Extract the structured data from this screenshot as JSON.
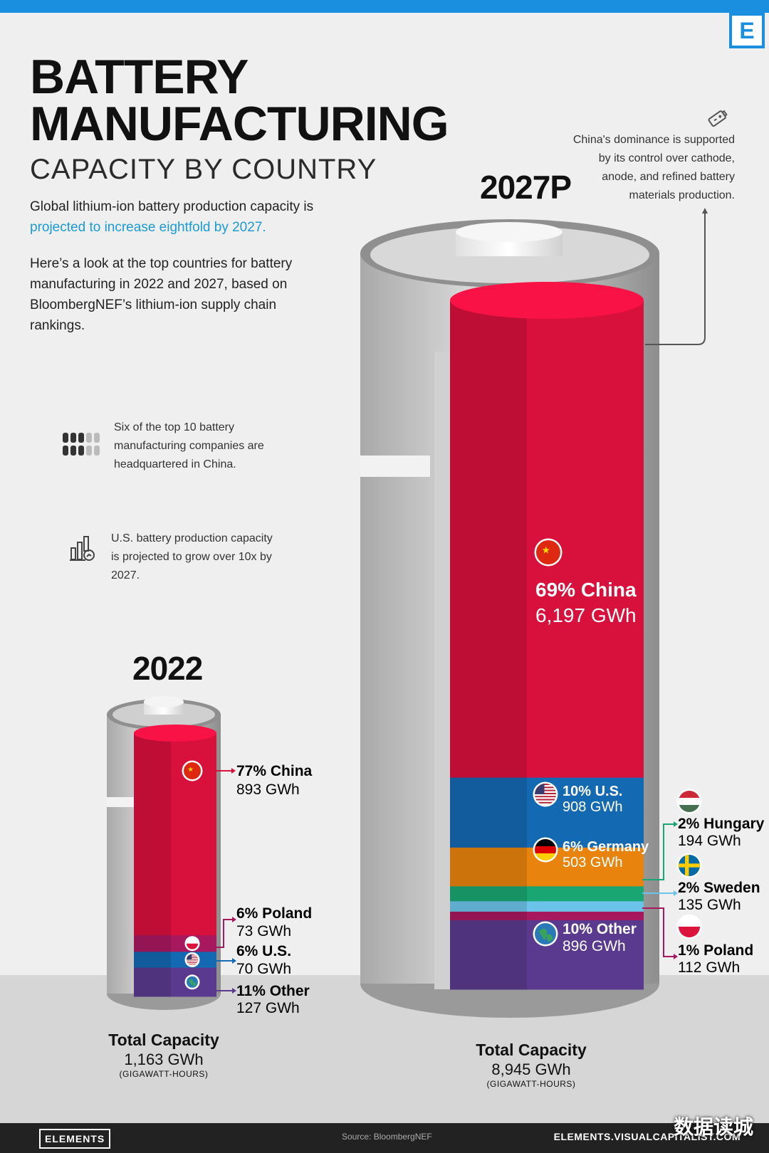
{
  "header": {
    "logo": "E",
    "title_line1": "BATTERY",
    "title_line2": "MANUFACTURING",
    "subtitle": "CAPACITY BY COUNTRY"
  },
  "intro": {
    "p1_start": "Global lithium-ion battery production capacity is ",
    "p1_highlight": "projected to increase eightfold by 2027.",
    "p2": "Here’s a look at the top countries for battery manufacturing in 2022 and 2027, based on BloombergNEF’s lithium-ion supply chain rankings."
  },
  "notes": {
    "companies": "Six of the top 10 battery manufacturing companies are headquartered in China.",
    "us_growth": "U.S. battery production capacity is projected to grow over 10x by 2027.",
    "china_dominance": "China's dominance is supported by its control over cathode, anode, and refined battery materials production."
  },
  "colors": {
    "china": "#d8103c",
    "us": "#1469b3",
    "germany": "#e8830d",
    "hungary": "#1aa673",
    "sweden": "#6cc3ea",
    "poland": "#a8185e",
    "other": "#5a3a8e",
    "accent": "#1a8fe0"
  },
  "chart_data": [
    {
      "type": "bar",
      "title": "2022",
      "stacked": true,
      "unit": "GWh",
      "total": {
        "label": "Total Capacity",
        "value": 1163,
        "value_label": "1,163 GWh",
        "unit_label": "(GIGAWATT-HOURS)"
      },
      "series": [
        {
          "name": "China",
          "value": 893,
          "share": 77,
          "label": "77% China",
          "value_label": "893 GWh",
          "color_key": "china",
          "flag": "china"
        },
        {
          "name": "Poland",
          "value": 73,
          "share": 6,
          "label": "6% Poland",
          "value_label": "73 GWh",
          "color_key": "poland",
          "flag": "poland"
        },
        {
          "name": "U.S.",
          "value": 70,
          "share": 6,
          "label": "6% U.S.",
          "value_label": "70 GWh",
          "color_key": "us",
          "flag": "us"
        },
        {
          "name": "Other",
          "value": 127,
          "share": 11,
          "label": "11% Other",
          "value_label": "127 GWh",
          "color_key": "other",
          "flag": "globe"
        }
      ]
    },
    {
      "type": "bar",
      "title": "2027P",
      "stacked": true,
      "unit": "GWh",
      "total": {
        "label": "Total Capacity",
        "value": 8945,
        "value_label": "8,945 GWh",
        "unit_label": "(GIGAWATT-HOURS)"
      },
      "series": [
        {
          "name": "China",
          "value": 6197,
          "share": 69,
          "label": "69% China",
          "value_label": "6,197 GWh",
          "color_key": "china",
          "flag": "china"
        },
        {
          "name": "U.S.",
          "value": 908,
          "share": 10,
          "label": "10% U.S.",
          "value_label": "908 GWh",
          "color_key": "us",
          "flag": "us"
        },
        {
          "name": "Germany",
          "value": 503,
          "share": 6,
          "label": "6% Germany",
          "value_label": "503 GWh",
          "color_key": "germany",
          "flag": "germany"
        },
        {
          "name": "Hungary",
          "value": 194,
          "share": 2,
          "label": "2% Hungary",
          "value_label": "194 GWh",
          "color_key": "hungary",
          "flag": "hungary"
        },
        {
          "name": "Sweden",
          "value": 135,
          "share": 2,
          "label": "2% Sweden",
          "value_label": "135 GWh",
          "color_key": "sweden",
          "flag": "sweden"
        },
        {
          "name": "Poland",
          "value": 112,
          "share": 1,
          "label": "1% Poland",
          "value_label": "112 GWh",
          "color_key": "poland",
          "flag": "poland"
        },
        {
          "name": "Other",
          "value": 896,
          "share": 10,
          "label": "10% Other",
          "value_label": "896 GWh",
          "color_key": "other",
          "flag": "globe"
        }
      ]
    }
  ],
  "footer": {
    "brand": "ELEMENTS",
    "source": "Source: BloombergNEF",
    "site": "ELEMENTS.VISUALCAPITALIST.COM",
    "watermark": "数据读城"
  }
}
